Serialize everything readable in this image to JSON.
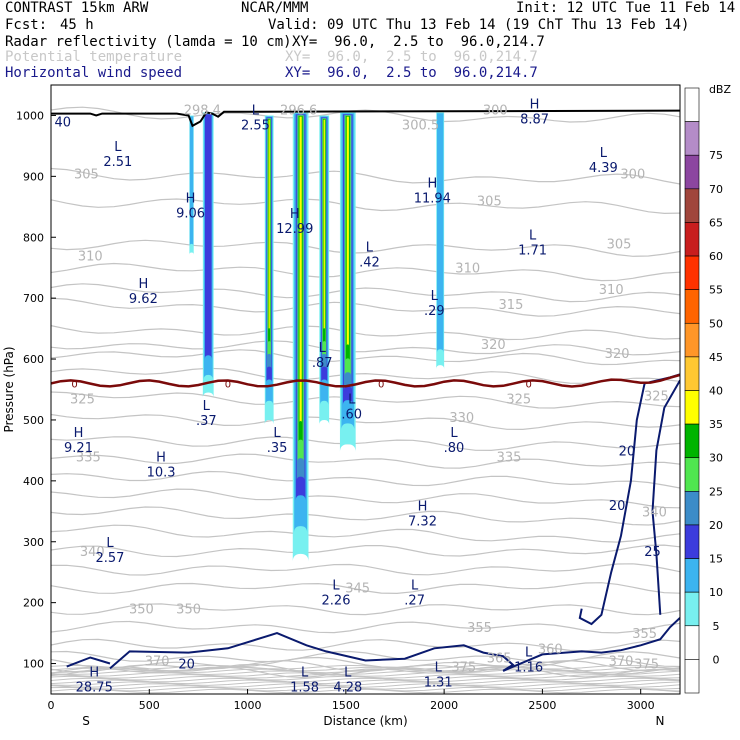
{
  "header": {
    "model": "CONTRAST 15km ARW",
    "org": "NCAR/MMM",
    "init": "Init: 12 UTC Tue 11 Feb 14",
    "fcst_label": "Fcst:",
    "fcst_value": "45 h",
    "valid": "Valid: 09 UTC Thu 13 Feb 14 (19 ChT Thu 13 Feb 14)",
    "field1_name": "Radar reflectivity (lamda = 10 cm)",
    "field1_xy": "XY=  96.0,  2.5 to  96.0,214.7",
    "field2_name": "Potential temperature",
    "field2_xy": "XY=  96.0,  2.5 to  96.0,214.7",
    "field3_name": "Horizontal wind speed",
    "field3_xy": "XY=  96.0,  2.5 to  96.0,214.7"
  },
  "chart_data": {
    "type": "cross-section",
    "xlabel": "Distance (km)",
    "ylabel": "Pressure (hPa)",
    "xlim": [
      0,
      3200
    ],
    "ylim": [
      1050,
      50
    ],
    "x_ticks": [
      0,
      500,
      1000,
      1500,
      2000,
      2500,
      3000
    ],
    "y_ticks": [
      100,
      200,
      300,
      400,
      500,
      600,
      700,
      800,
      900,
      1000
    ],
    "x_tick_labels": [
      "0",
      "500",
      "1000",
      "1500",
      "2000",
      "2500",
      "3000"
    ],
    "y_tick_labels": [
      "100",
      "200",
      "300",
      "400",
      "500",
      "600",
      "700",
      "800",
      "900",
      "1000"
    ],
    "left_end_label": "S",
    "right_end_label": "N",
    "colorbar": {
      "unit": "dBZ",
      "levels": [
        "75",
        "70",
        "65",
        "60",
        "55",
        "50",
        "45",
        "40",
        "35",
        "30",
        "25",
        "20",
        "15",
        "10",
        "5",
        "0"
      ],
      "colors": [
        "#ffffff",
        "#b48cc8",
        "#8c46a0",
        "#a0463c",
        "#c81e1e",
        "#ff3200",
        "#ff6400",
        "#ff9628",
        "#ffc832",
        "#ffff00",
        "#00b400",
        "#50e650",
        "#3c8cc8",
        "#3c3cdc",
        "#3cb4f0",
        "#78f0f0",
        "#ffffff",
        "#ffffff"
      ]
    },
    "theta_labels": [
      {
        "text": "370",
        "x": 540,
        "p": 105
      },
      {
        "text": "365",
        "x": 2280,
        "p": 110
      },
      {
        "text": "360",
        "x": 2540,
        "p": 125
      },
      {
        "text": "370",
        "x": 2900,
        "p": 105
      },
      {
        "text": "375",
        "x": 3030,
        "p": 100
      },
      {
        "text": "375",
        "x": 2100,
        "p": 95
      },
      {
        "text": "355",
        "x": 2180,
        "p": 160
      },
      {
        "text": "355",
        "x": 3020,
        "p": 150
      },
      {
        "text": "350",
        "x": 460,
        "p": 190
      },
      {
        "text": "350",
        "x": 700,
        "p": 190
      },
      {
        "text": "345",
        "x": 1560,
        "p": 225
      },
      {
        "text": "340",
        "x": 210,
        "p": 285
      },
      {
        "text": "340",
        "x": 3070,
        "p": 350
      },
      {
        "text": "335",
        "x": 190,
        "p": 440
      },
      {
        "text": "335",
        "x": 2330,
        "p": 440
      },
      {
        "text": "330",
        "x": 2090,
        "p": 505
      },
      {
        "text": "325",
        "x": 160,
        "p": 535
      },
      {
        "text": "325",
        "x": 2380,
        "p": 535
      },
      {
        "text": "325",
        "x": 3080,
        "p": 540
      },
      {
        "text": "320",
        "x": 2250,
        "p": 625
      },
      {
        "text": "320",
        "x": 2880,
        "p": 610
      },
      {
        "text": "315",
        "x": 2340,
        "p": 690
      },
      {
        "text": "310",
        "x": 200,
        "p": 770
      },
      {
        "text": "310",
        "x": 2120,
        "p": 750
      },
      {
        "text": "310",
        "x": 2850,
        "p": 715
      },
      {
        "text": "305",
        "x": 2230,
        "p": 860
      },
      {
        "text": "305",
        "x": 180,
        "p": 905
      },
      {
        "text": "305",
        "x": 2890,
        "p": 790
      },
      {
        "text": "300",
        "x": 2960,
        "p": 905
      },
      {
        "text": "300.5",
        "x": 1880,
        "p": 985
      },
      {
        "text": "300",
        "x": 2260,
        "p": 1010
      },
      {
        "text": "298.4",
        "x": 770,
        "p": 1010
      },
      {
        "text": "296.6",
        "x": 1260,
        "p": 1010
      }
    ],
    "wind_labels": [
      {
        "text": "20",
        "x": 690,
        "p": 100
      },
      {
        "text": "25",
        "x": 3060,
        "p": 285
      },
      {
        "text": "20",
        "x": 2880,
        "p": 360
      },
      {
        "text": "20",
        "x": 2930,
        "p": 450
      },
      {
        "text": "40",
        "x": 60,
        "p": 990
      }
    ],
    "extrema": [
      {
        "type": "H",
        "value": "28.75",
        "x": 220,
        "p": 82
      },
      {
        "type": "L",
        "value": "1.58",
        "x": 1290,
        "p": 82
      },
      {
        "type": "L",
        "value": "4.28",
        "x": 1510,
        "p": 82
      },
      {
        "type": "L",
        "value": "1.31",
        "x": 1970,
        "p": 90
      },
      {
        "type": "L",
        "value": "1.16",
        "x": 2430,
        "p": 115
      },
      {
        "type": "L",
        "value": "2.26",
        "x": 1450,
        "p": 225
      },
      {
        "type": "L",
        "value": ".27",
        "x": 1850,
        "p": 225
      },
      {
        "type": "L",
        "value": "2.57",
        "x": 300,
        "p": 295
      },
      {
        "type": "H",
        "value": "7.32",
        "x": 1890,
        "p": 355
      },
      {
        "type": "H",
        "value": "10.3",
        "x": 560,
        "p": 435
      },
      {
        "type": "H",
        "value": "9.21",
        "x": 140,
        "p": 475
      },
      {
        "type": "L",
        "value": ".35",
        "x": 1150,
        "p": 475
      },
      {
        "type": "L",
        "value": ".80",
        "x": 2050,
        "p": 475
      },
      {
        "type": "L",
        "value": ".37",
        "x": 790,
        "p": 520
      },
      {
        "type": "L",
        "value": ".60",
        "x": 1530,
        "p": 530
      },
      {
        "type": "L",
        "value": ".87",
        "x": 1380,
        "p": 615
      },
      {
        "type": "L",
        "value": ".29",
        "x": 1950,
        "p": 700
      },
      {
        "type": "H",
        "value": "9.62",
        "x": 470,
        "p": 720
      },
      {
        "type": "L",
        "value": ".42",
        "x": 1620,
        "p": 780
      },
      {
        "type": "L",
        "value": "1.71",
        "x": 2450,
        "p": 800
      },
      {
        "type": "H",
        "value": "12.99",
        "x": 1240,
        "p": 835
      },
      {
        "type": "H",
        "value": "9.06",
        "x": 710,
        "p": 860
      },
      {
        "type": "H",
        "value": "11.94",
        "x": 1940,
        "p": 885
      },
      {
        "type": "L",
        "value": "2.51",
        "x": 340,
        "p": 945
      },
      {
        "type": "L",
        "value": "4.39",
        "x": 2810,
        "p": 935
      },
      {
        "type": "L",
        "value": "2.55",
        "x": 1040,
        "p": 1005
      },
      {
        "type": "H",
        "value": "8.87",
        "x": 2460,
        "p": 1015
      }
    ],
    "freezing_label": "0"
  }
}
